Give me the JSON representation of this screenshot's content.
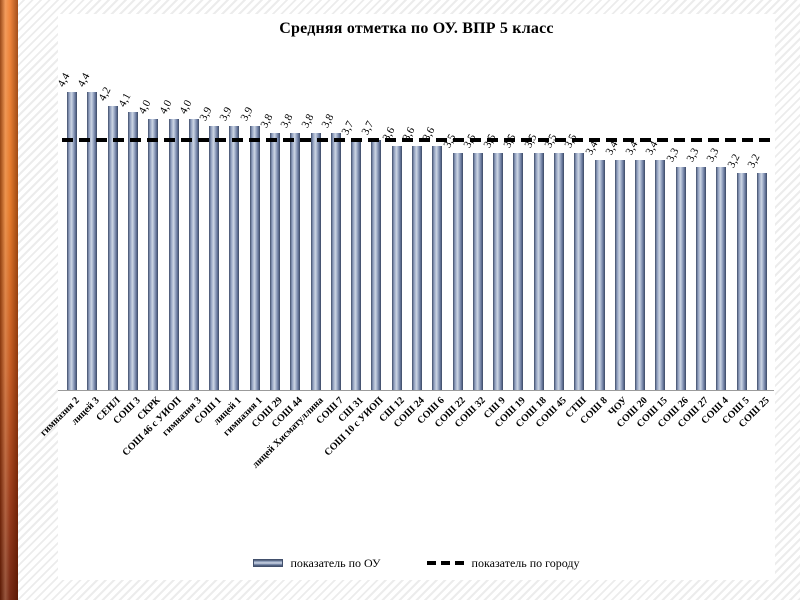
{
  "slide": {
    "title": "Средняя отметка по ОУ. ВПР 5 класс"
  },
  "legend": {
    "series_label": "показатель по ОУ",
    "city_label": "показатель по городу"
  },
  "colors": {
    "bar_light": "#cdd6e4",
    "bar_mid": "#8d9dbd",
    "bar_dark": "#3f4c68",
    "city_line": "#000000",
    "accent_top": "#f08034",
    "accent_bottom": "#6e1d07",
    "background_stripe": "#ececec"
  },
  "chart_data": {
    "type": "bar",
    "title": "Средняя отметка по ОУ. ВПР 5 класс",
    "xlabel": "",
    "ylabel": "",
    "ylim": [
      0,
      4.9
    ],
    "grid": false,
    "legend_position": "bottom",
    "decimal_separator": ",",
    "value_label_style": "rotated above bars",
    "legend": [
      "показатель по ОУ",
      "показатель по городу"
    ],
    "city_value": 3.7,
    "categories": [
      "гимназия 2",
      "лицей 3",
      "СЕНЛ",
      "СОШ 3",
      "СКРК",
      "СОШ 46 с УИОП",
      "гимназия 3",
      "СОШ 1",
      "лицей 1",
      "гимназия 1",
      "СОШ 29",
      "СОШ 44",
      "лицей Хисматуллина",
      "СОШ 7",
      "СШ 31",
      "СОШ 10 с УИОП",
      "СШ 12",
      "СОШ 24",
      "СОШ 6",
      "СОШ 22",
      "СОШ 32",
      "СШ 9",
      "СОШ 19",
      "СОШ 18",
      "СОШ 45",
      "СТШ",
      "СОШ 8",
      "ЧОУ",
      "СОШ 20",
      "СОШ 15",
      "СОШ 26",
      "СОШ 27",
      "СОШ 4",
      "СОШ 5",
      "СОШ 25"
    ],
    "values": [
      4.4,
      4.4,
      4.2,
      4.1,
      4.0,
      4.0,
      4.0,
      3.9,
      3.9,
      3.9,
      3.8,
      3.8,
      3.8,
      3.8,
      3.7,
      3.7,
      3.6,
      3.6,
      3.6,
      3.5,
      3.5,
      3.5,
      3.5,
      3.5,
      3.5,
      3.5,
      3.4,
      3.4,
      3.4,
      3.4,
      3.3,
      3.3,
      3.3,
      3.2,
      3.2
    ]
  }
}
